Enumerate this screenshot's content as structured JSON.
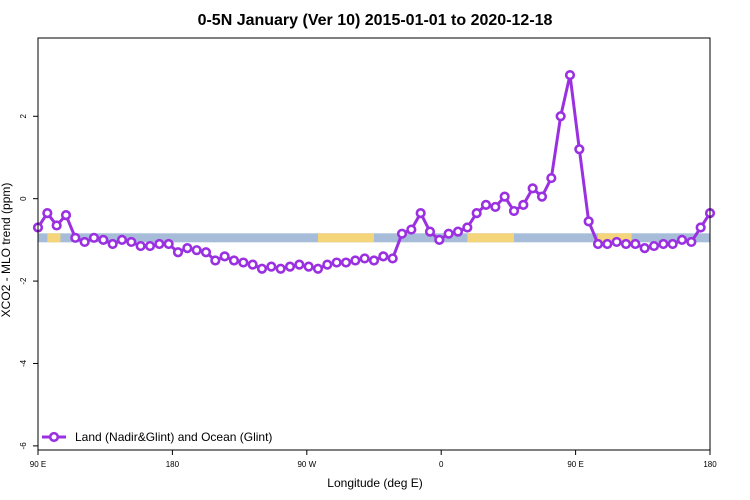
{
  "chart_data": {
    "type": "line",
    "title": "0-5N January (Ver 10)   2015-01-01 to 2020-12-18",
    "xlabel": "Longitude (deg E)",
    "ylabel": "XCO2 - MLO trend (ppm)",
    "xlim": [
      90,
      450
    ],
    "ylim": [
      -6.1,
      3.9
    ],
    "x_tick_values": [
      90,
      162,
      234,
      306,
      378,
      450
    ],
    "x_tick_labels": [
      "90 E",
      "180",
      "90 W",
      "0",
      "90 E",
      "180"
    ],
    "y_tick_values": [
      2,
      0,
      -2,
      -4,
      -6
    ],
    "y_tick_labels": [
      "2",
      "0",
      "-2",
      "-4",
      "-6"
    ],
    "grid": false,
    "legend_position": "bottom-left",
    "series": [
      {
        "name": "Land (Nadir&Glint) and Ocean (Glint)",
        "color": "#9b30e0",
        "x": [
          90,
          95,
          100,
          105,
          110,
          115,
          120,
          125,
          130,
          135,
          140,
          145,
          150,
          155,
          160,
          165,
          170,
          175,
          180,
          185,
          190,
          195,
          200,
          205,
          210,
          215,
          220,
          225,
          230,
          235,
          240,
          245,
          250,
          255,
          260,
          265,
          270,
          275,
          280,
          285,
          290,
          295,
          300,
          305,
          310,
          315,
          320,
          325,
          330,
          335,
          340,
          345,
          350,
          355,
          360,
          365,
          370,
          375,
          380,
          385,
          390,
          395,
          400,
          405,
          410,
          415,
          420,
          425,
          430,
          435,
          440,
          445,
          450
        ],
        "y": [
          -0.7,
          -0.35,
          -0.65,
          -0.4,
          -0.95,
          -1.05,
          -0.95,
          -1.0,
          -1.1,
          -1.0,
          -1.05,
          -1.15,
          -1.15,
          -1.1,
          -1.1,
          -1.3,
          -1.2,
          -1.25,
          -1.3,
          -1.5,
          -1.4,
          -1.5,
          -1.55,
          -1.6,
          -1.7,
          -1.65,
          -1.7,
          -1.65,
          -1.6,
          -1.65,
          -1.7,
          -1.6,
          -1.55,
          -1.55,
          -1.5,
          -1.45,
          -1.5,
          -1.4,
          -1.45,
          -0.85,
          -0.75,
          -0.35,
          -0.8,
          -1.0,
          -0.85,
          -0.8,
          -0.7,
          -0.35,
          -0.15,
          -0.2,
          0.05,
          -0.3,
          -0.15,
          0.25,
          0.05,
          0.5,
          2.0,
          3.0,
          1.2,
          -0.55,
          -1.1,
          -1.1,
          -1.05,
          -1.1,
          -1.1,
          -1.2,
          -1.15,
          -1.1,
          -1.1,
          -1.0,
          -1.05,
          -0.7,
          -0.35
        ],
        "gaps_after_x": [
          368
        ]
      }
    ],
    "surface_band": {
      "y_center": -0.95,
      "land_color": "#f5d57a",
      "ocean_color": "#a6bcd9",
      "land_spans": [
        [
          95,
          102
        ],
        [
          240,
          270
        ],
        [
          320,
          345
        ],
        [
          390,
          400
        ],
        [
          400,
          408
        ]
      ]
    }
  }
}
